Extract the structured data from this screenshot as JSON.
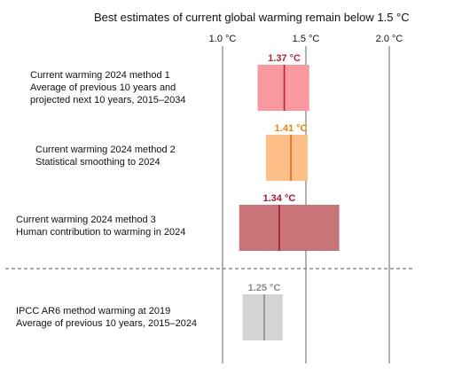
{
  "chart_data": {
    "type": "range",
    "title": "Best estimates of current global warming remain below 1.5 °C",
    "x_ticks": [
      {
        "value": 1.0,
        "label": "1.0 °C"
      },
      {
        "value": 1.5,
        "label": "1.5 °C"
      },
      {
        "value": 2.0,
        "label": "2.0 °C"
      }
    ],
    "xlim": [
      0.98,
      2.12
    ],
    "grid": true,
    "rows": [
      {
        "label_lines": [
          "Current warming 2024 method 1",
          "Average of previous 10 years and",
          "projected next 10 years, 2015–2034"
        ],
        "low": 1.21,
        "high": 1.52,
        "value": 1.37,
        "value_label": "1.37 °C",
        "fill": "#f8999e",
        "line": "#b3243a",
        "value_color": "#b3243a"
      },
      {
        "label_lines": [
          "Current warming 2024 method 2",
          "Statistical smoothing to 2024"
        ],
        "low": 1.26,
        "high": 1.51,
        "value": 1.41,
        "value_label": "1.41 °C",
        "fill": "#fdbf87",
        "line": "#d96a1e",
        "value_color": "#e8820e"
      },
      {
        "label_lines": [
          "Current warming 2024 method 3",
          "Human contribution to warming in 2024"
        ],
        "low": 1.1,
        "high": 1.7,
        "value": 1.34,
        "value_label": "1.34 °C",
        "fill": "#c77377",
        "line": "#a11a2c",
        "value_color": "#a11a2c"
      },
      {
        "label_lines": [
          "IPCC AR6 method warming at 2019",
          "Average of previous 10 years, 2015–2024"
        ],
        "low": 1.12,
        "high": 1.36,
        "value": 1.25,
        "value_label": "1.25 °C",
        "fill": "#d4d4d4",
        "line": "#8a8a8a",
        "value_color": "#8a8a8a"
      }
    ],
    "separator_after_row": 2
  }
}
